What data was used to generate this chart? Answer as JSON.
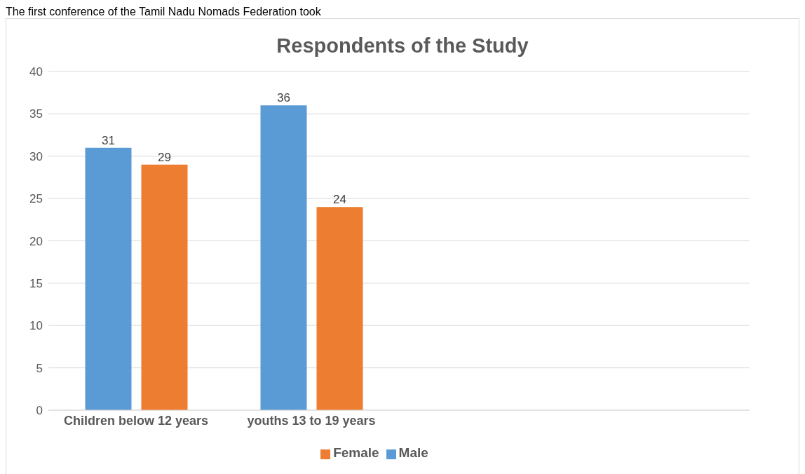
{
  "chart_data": {
    "type": "bar",
    "title": "Respondents of the Study",
    "annotations": [
      "The first conference of the Tamil Nadu Nomads Federation took"
    ],
    "categories": [
      "Children below 12 years",
      "youths 13 to 19 years",
      null,
      null
    ],
    "series": [
      {
        "name": "Male",
        "color": "#5b9bd5",
        "values": [
          31,
          36,
          null,
          null
        ]
      },
      {
        "name": "Female",
        "color": "#ed7d31",
        "values": [
          29,
          24,
          null,
          null
        ]
      }
    ],
    "ylim": [
      0,
      40
    ],
    "yticks": [
      0,
      5,
      10,
      15,
      20,
      25,
      30,
      35,
      40
    ],
    "grid": "y",
    "legend": "bottom",
    "data_labels": true
  }
}
